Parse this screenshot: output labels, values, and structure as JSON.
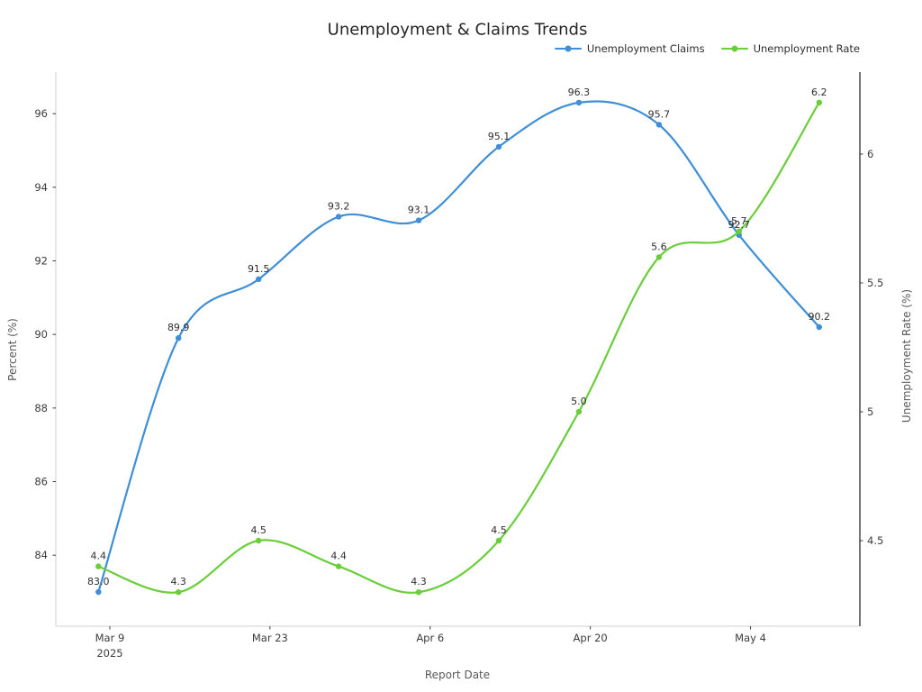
{
  "title": "Unemployment & Claims Trends",
  "colors": {
    "claims": "#3f8ed8",
    "rate": "#6ace3b",
    "spine_light": "#cfcfcf",
    "spine_dark": "#2b2b2b",
    "tick_mark": "#3c3c3c",
    "tick_text": "#3c3c3c",
    "axis_label_text": "#595959",
    "data_label_text": "#2e2e2e",
    "title_text": "#262626",
    "background": "#ffffff"
  },
  "legend": {
    "position": "top-right",
    "items": [
      {
        "label": "Unemployment Claims",
        "color_key": "claims"
      },
      {
        "label": "Unemployment Rate",
        "color_key": "rate"
      }
    ]
  },
  "chart_data": {
    "type": "line",
    "title": "Unemployment & Claims Trends",
    "xlabel": "Report Date",
    "ylabel_left": "Percent (%)",
    "ylabel_right": "Unemployment Rate (%)",
    "grid": false,
    "smooth": true,
    "point_labels_shown": true,
    "x_days": [
      0,
      7,
      14,
      21,
      28,
      35,
      42,
      49,
      56,
      63
    ],
    "x_tick_days": [
      1,
      15,
      29,
      43,
      57
    ],
    "x_tick_labels": [
      "Mar 9",
      "Mar 23",
      "Apr 6",
      "Apr 20",
      "May 4"
    ],
    "x_first_tick_sublabel": "2025",
    "xlim_days": [
      -3.72,
      66.56
    ],
    "left_ticks": [
      84,
      86,
      88,
      90,
      92,
      94,
      96
    ],
    "left_ylim": [
      82.07,
      97.13
    ],
    "right_ticks": [
      4.5,
      5,
      5.5,
      6
    ],
    "right_ylim": [
      4.168,
      6.318
    ],
    "series": [
      {
        "name": "Unemployment Claims",
        "axis": "left",
        "color_key": "claims",
        "marker": "circle",
        "values": [
          83.0,
          89.9,
          91.5,
          93.2,
          93.1,
          95.1,
          96.3,
          95.7,
          92.7,
          90.2
        ]
      },
      {
        "name": "Unemployment Rate",
        "axis": "right",
        "color_key": "rate",
        "marker": "circle",
        "values": [
          4.4,
          4.3,
          4.5,
          4.4,
          4.3,
          4.5,
          5.0,
          5.6,
          5.7,
          6.2
        ]
      }
    ]
  }
}
